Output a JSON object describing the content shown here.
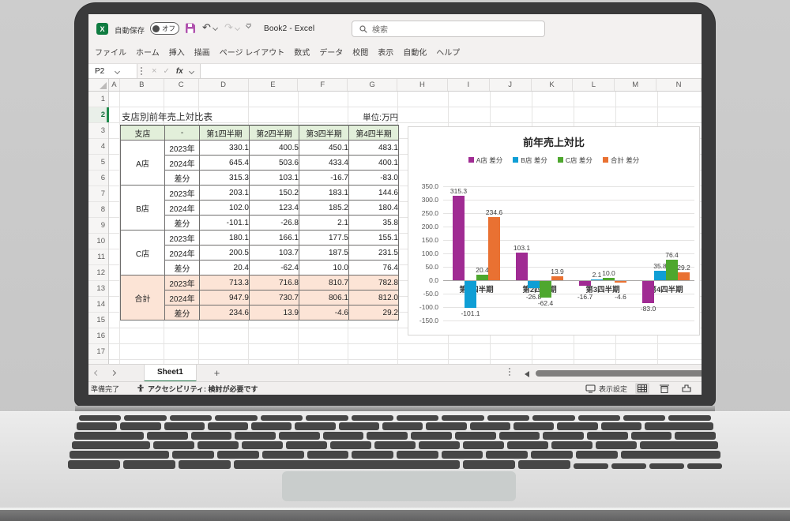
{
  "titlebar": {
    "autosave_label": "自動保存",
    "autosave_state": "オフ",
    "workbook_title": "Book2  -  Excel",
    "search_placeholder": "検索"
  },
  "ribbon": {
    "tabs": [
      "ファイル",
      "ホーム",
      "挿入",
      "描画",
      "ページ レイアウト",
      "数式",
      "データ",
      "校閲",
      "表示",
      "自動化",
      "ヘルプ"
    ]
  },
  "formula_bar": {
    "name_box": "P2",
    "fx_label": "fx",
    "cancel_glyph": "×",
    "enter_glyph": "✓"
  },
  "grid": {
    "columns": [
      "A",
      "B",
      "C",
      "D",
      "E",
      "F",
      "G",
      "H",
      "I",
      "J",
      "K",
      "L",
      "M",
      "N"
    ],
    "rows": [
      "1",
      "2",
      "3",
      "4",
      "5",
      "6",
      "7",
      "8",
      "9",
      "10",
      "11",
      "12",
      "13",
      "14",
      "15",
      "16",
      "17"
    ],
    "selected_row": "2"
  },
  "sheet": {
    "title": "支店別前年売上対比表",
    "unit": "単位:万円"
  },
  "table": {
    "headers": [
      "支店",
      "-",
      "第1四半期",
      "第2四半期",
      "第3四半期",
      "第4四半期"
    ],
    "groups": [
      {
        "name": "A店",
        "total": false,
        "rows": [
          {
            "label": "2023年",
            "values": [
              "330.1",
              "400.5",
              "450.1",
              "483.1"
            ],
            "reds": [
              false,
              false,
              false,
              false
            ]
          },
          {
            "label": "2024年",
            "values": [
              "645.4",
              "503.6",
              "433.4",
              "400.1"
            ],
            "reds": [
              false,
              false,
              false,
              false
            ]
          },
          {
            "label": "差分",
            "values": [
              "315.3",
              "103.1",
              "-16.7",
              "-83.0"
            ],
            "reds": [
              false,
              false,
              true,
              true
            ]
          }
        ]
      },
      {
        "name": "B店",
        "total": false,
        "rows": [
          {
            "label": "2023年",
            "values": [
              "203.1",
              "150.2",
              "183.1",
              "144.6"
            ],
            "reds": [
              false,
              false,
              false,
              false
            ]
          },
          {
            "label": "2024年",
            "values": [
              "102.0",
              "123.4",
              "185.2",
              "180.4"
            ],
            "reds": [
              false,
              false,
              false,
              false
            ]
          },
          {
            "label": "差分",
            "values": [
              "-101.1",
              "-26.8",
              "2.1",
              "35.8"
            ],
            "reds": [
              true,
              true,
              false,
              false
            ]
          }
        ]
      },
      {
        "name": "C店",
        "total": false,
        "rows": [
          {
            "label": "2023年",
            "values": [
              "180.1",
              "166.1",
              "177.5",
              "155.1"
            ],
            "reds": [
              false,
              false,
              false,
              false
            ]
          },
          {
            "label": "2024年",
            "values": [
              "200.5",
              "103.7",
              "187.5",
              "231.5"
            ],
            "reds": [
              false,
              false,
              false,
              false
            ]
          },
          {
            "label": "差分",
            "values": [
              "20.4",
              "-62.4",
              "10.0",
              "76.4"
            ],
            "reds": [
              false,
              true,
              false,
              false
            ]
          }
        ]
      },
      {
        "name": "合計",
        "total": true,
        "rows": [
          {
            "label": "2023年",
            "values": [
              "713.3",
              "716.8",
              "810.7",
              "782.8"
            ],
            "reds": [
              false,
              false,
              false,
              false
            ]
          },
          {
            "label": "2024年",
            "values": [
              "947.9",
              "730.7",
              "806.1",
              "812.0"
            ],
            "reds": [
              false,
              false,
              false,
              false
            ]
          },
          {
            "label": "差分",
            "values": [
              "234.6",
              "13.9",
              "-4.6",
              "29.2"
            ],
            "reds": [
              false,
              true,
              false,
              false
            ]
          }
        ]
      }
    ]
  },
  "chart_data": {
    "type": "bar",
    "title": "前年売上対比",
    "categories": [
      "第1四半期",
      "第2四半期",
      "第3四半期",
      "第4四半期"
    ],
    "series": [
      {
        "name": "A店 差分",
        "color": "#A02B93",
        "values": [
          315.3,
          103.1,
          -16.7,
          -83.0
        ]
      },
      {
        "name": "B店 差分",
        "color": "#0F9ED5",
        "values": [
          -101.1,
          -26.8,
          2.1,
          35.8
        ]
      },
      {
        "name": "C店 差分",
        "color": "#4EA72E",
        "values": [
          20.4,
          -62.4,
          10.0,
          76.4
        ]
      },
      {
        "name": "合計 差分",
        "color": "#E97132",
        "values": [
          234.6,
          13.9,
          -4.6,
          29.2
        ]
      }
    ],
    "ylim": [
      -150,
      350
    ],
    "ytick_step": 50,
    "grid": true,
    "legend_position": "top",
    "data_labels": true
  },
  "tabs_bar": {
    "sheet_name": "Sheet1",
    "add_label": "+"
  },
  "status_bar": {
    "ready": "準備完了",
    "accessibility": "アクセシビリティ: 検討が必要です",
    "view_settings": "表示設定"
  },
  "colors": {
    "excel_green": "#107c41",
    "header_fill": "#e2efda",
    "total_fill": "#fce4d6",
    "negative_red": "#ee2222",
    "save_icon_purple": "#b052ae"
  }
}
